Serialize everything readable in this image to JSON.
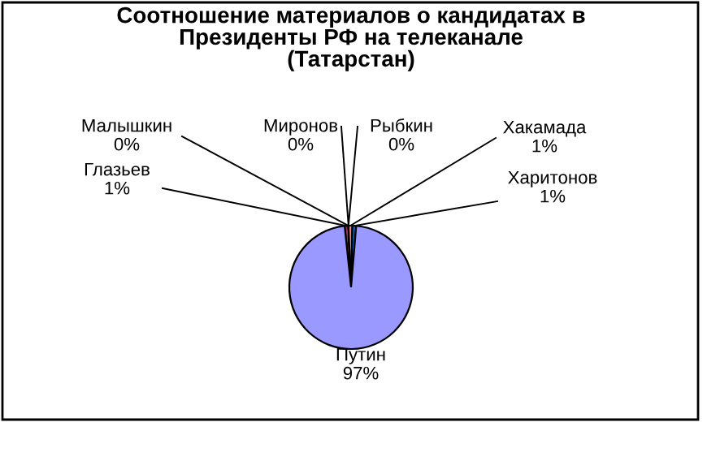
{
  "chart_data": {
    "type": "pie",
    "title": "Соотношение материалов о кандидатах в\nПрезиденты РФ на телеканале\n(Татарстан)",
    "categories": [
      "Глазьев",
      "Малышкин",
      "Миронов",
      "Рыбкин",
      "Хакамада",
      "Харитонов",
      "Путин"
    ],
    "values": [
      1,
      0,
      0,
      0,
      1,
      1,
      97
    ],
    "value_labels": [
      "1%",
      "0%",
      "0%",
      "0%",
      "1%",
      "1%",
      "97%"
    ],
    "colors": [
      "#993366",
      "#ffffcc",
      "#ccffff",
      "#660066",
      "#ff8080",
      "#0066cc",
      "#9999ff"
    ],
    "legend": false
  }
}
